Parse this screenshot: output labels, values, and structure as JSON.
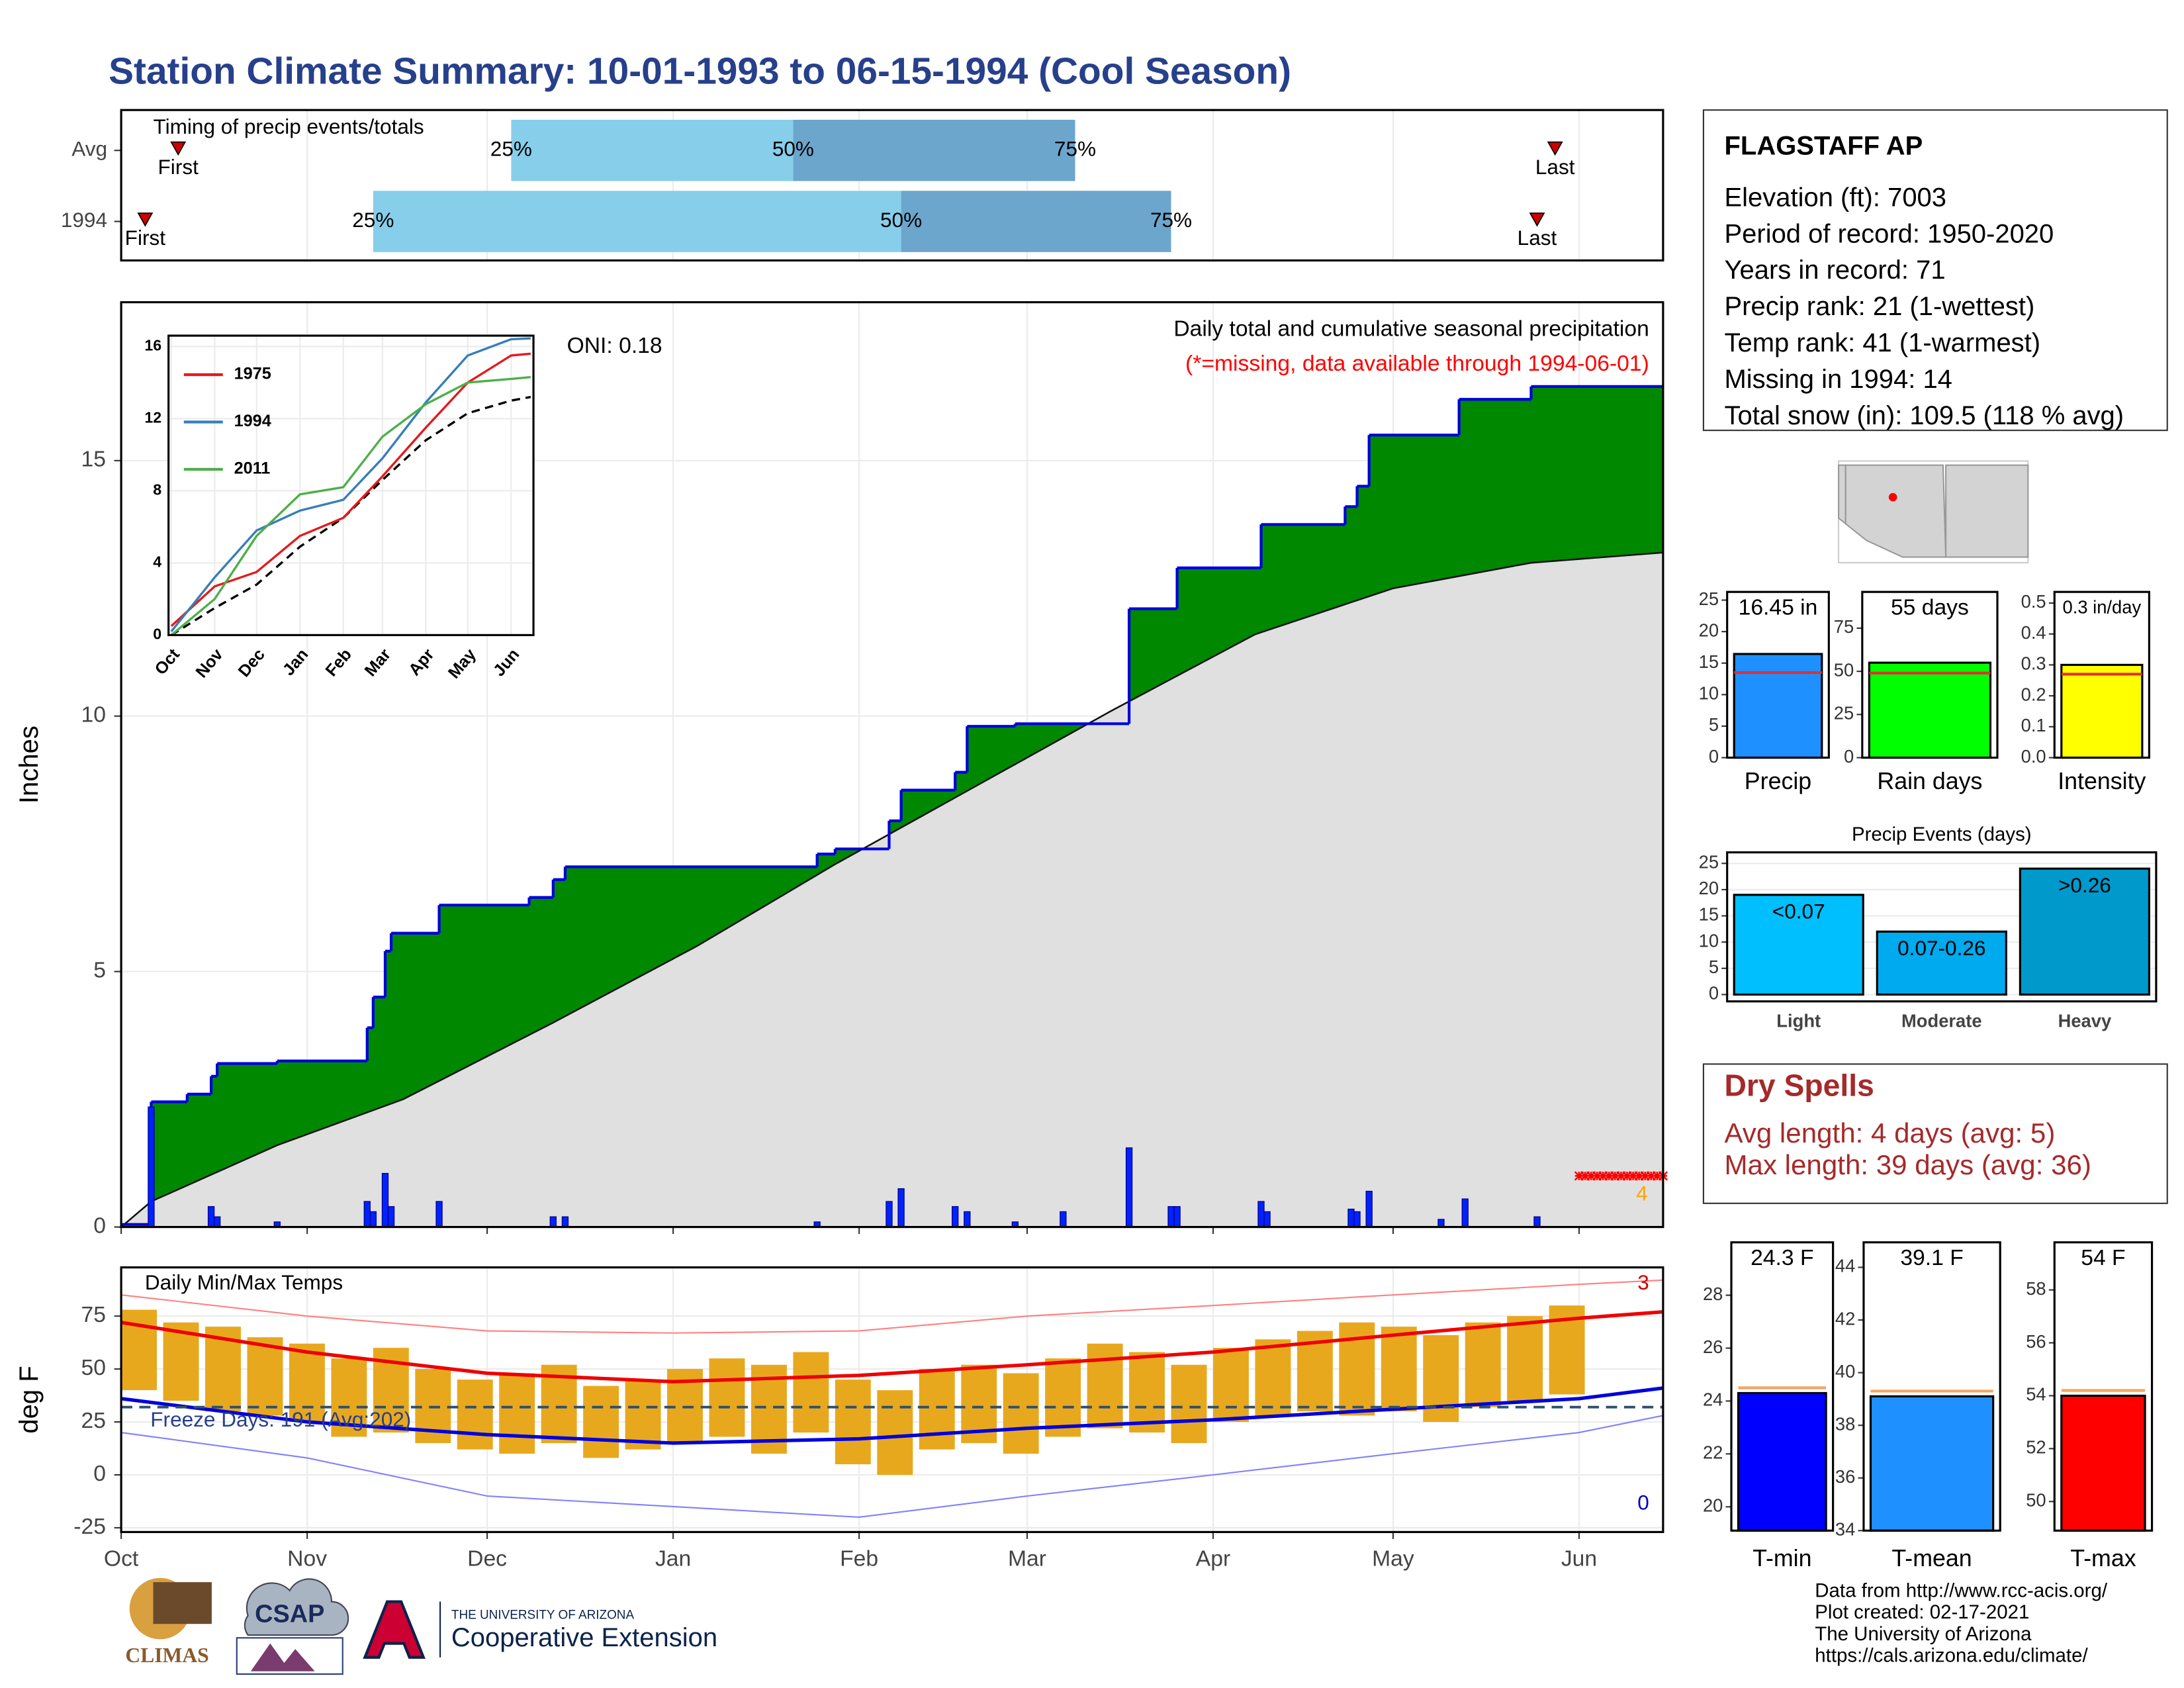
{
  "title": "Station Climate Summary: 10-01-1993 to 06-15-1994 (Cool Season)",
  "station": {
    "name": "FLAGSTAFF AP",
    "lines": [
      "Elevation (ft): 7003",
      "Period of record: 1950-2020",
      "Years in record: 71",
      "Precip rank: 21 (1-wettest)",
      "Temp rank: 41 (1-warmest)",
      "Missing in 1994: 14",
      "Total snow (in): 109.5 (118 % avg)"
    ]
  },
  "dry_spells": {
    "title": "Dry Spells",
    "lines": [
      "Avg length: 4 days (avg: 5)",
      "Max length: 39 days (avg: 36)"
    ]
  },
  "logos": [
    "CLIMAS",
    "CSAP",
    "THE UNIVERSITY OF ARIZONA",
    "Cooperative Extension"
  ],
  "credits": [
    "Data from http://www.rcc-acis.org/",
    "Plot created: 02-17-2021",
    "The University of Arizona",
    "https://cals.arizona.edu/climate/"
  ],
  "chart_data": [
    {
      "type": "timing",
      "title": "Timing of precip events/totals",
      "xlim": [
        0,
        257
      ],
      "markers": [
        "First",
        "25%",
        "50%",
        "75%",
        "Last"
      ],
      "colors": [
        "#87ceeb",
        "#6ca6cd"
      ],
      "marker_color": "#cc0000",
      "rows": [
        {
          "name": "Avg",
          "values": [
            9.5,
            65,
            112,
            159,
            239
          ]
        },
        {
          "name": "1994",
          "values": [
            4,
            42,
            130,
            175,
            236
          ]
        }
      ]
    },
    {
      "type": "area",
      "title": "Daily total and cumulative seasonal precipitation",
      "subtitle": "(*=missing, data available through 1994-06-01)",
      "oni": "ONI: 0.18",
      "ylabel": "Inches",
      "xlim": [
        0,
        257
      ],
      "ylim": [
        0,
        18.1
      ],
      "xticks": [
        0,
        31,
        61,
        92,
        123,
        151,
        182,
        212,
        243
      ],
      "yticks": [
        0,
        5,
        10,
        15
      ],
      "grid": true,
      "colors": {
        "observed": "#008800",
        "line": "#0000dd",
        "average": "#e0e0e0",
        "daily": "#0022ff",
        "missing": "#ff0000"
      },
      "observed": {
        "x": [
          0,
          5,
          11,
          15,
          16,
          26,
          41,
          42,
          44,
          45,
          53,
          68,
          72,
          74,
          116,
          119,
          128,
          130,
          139,
          141,
          149,
          168,
          176,
          190,
          204,
          206,
          208,
          223,
          235
        ],
        "values": [
          0.05,
          2.45,
          2.6,
          2.95,
          3.2,
          3.25,
          3.9,
          4.5,
          5.4,
          5.75,
          6.3,
          6.45,
          6.8,
          7.05,
          7.3,
          7.4,
          7.95,
          8.55,
          8.9,
          9.8,
          9.85,
          12.1,
          12.9,
          13.75,
          14.1,
          14.5,
          15.5,
          16.2,
          16.45
        ]
      },
      "average": {
        "x": [
          0,
          5,
          26,
          47,
          72,
          96,
          119,
          142,
          165,
          189,
          212,
          235,
          257
        ],
        "values": [
          0,
          0.5,
          1.6,
          2.5,
          4.0,
          5.5,
          7.1,
          8.6,
          10.1,
          11.6,
          12.5,
          13.0,
          13.2
        ]
      },
      "daily": {
        "x": [
          5,
          15,
          16,
          26,
          41,
          42,
          44,
          45,
          53,
          72,
          74,
          116,
          128,
          130,
          139,
          141,
          149,
          157,
          168,
          175,
          176,
          190,
          191,
          205,
          206,
          208,
          220,
          224,
          236
        ],
        "values": [
          2.35,
          0.4,
          0.2,
          0.1,
          0.5,
          0.3,
          1.05,
          0.4,
          0.5,
          0.2,
          0.2,
          0.1,
          0.5,
          0.75,
          0.4,
          0.3,
          0.1,
          0.3,
          1.55,
          0.4,
          0.4,
          0.5,
          0.3,
          0.35,
          0.3,
          0.7,
          0.15,
          0.55,
          0.2
        ]
      },
      "missing_days": [
        243,
        244,
        245,
        246,
        247,
        248,
        249,
        250,
        251,
        252,
        253,
        254,
        255,
        256,
        257
      ],
      "missing_level": 1.0,
      "missing_note": 4
    },
    {
      "type": "line",
      "xlim": [
        -2,
        259
      ],
      "ylim": [
        0,
        16.6
      ],
      "yticks": [
        0,
        4,
        8,
        12,
        16
      ],
      "xticks": [
        {
          "value": 0,
          "label": "Oct"
        },
        {
          "value": 31,
          "label": "Nov"
        },
        {
          "value": 61,
          "label": "Dec"
        },
        {
          "value": 92,
          "label": "Jan"
        },
        {
          "value": 123,
          "label": "Feb"
        },
        {
          "value": 151,
          "label": "Mar"
        },
        {
          "value": 182,
          "label": "Apr"
        },
        {
          "value": 212,
          "label": "May"
        },
        {
          "value": 243,
          "label": "Jun"
        }
      ],
      "x": [
        0,
        31,
        61,
        92,
        123,
        151,
        182,
        212,
        243,
        257
      ],
      "series": [
        {
          "name": "1975",
          "color": "#e41a1c",
          "values": [
            0.5,
            2.7,
            3.5,
            5.5,
            6.5,
            8.8,
            11.5,
            14.0,
            15.5,
            15.6
          ]
        },
        {
          "name": "1994",
          "color": "#377eb8",
          "values": [
            0.2,
            3.2,
            5.8,
            6.9,
            7.5,
            9.8,
            12.9,
            15.5,
            16.4,
            16.45
          ]
        },
        {
          "name": "2011",
          "color": "#4daf4a",
          "values": [
            0,
            2.0,
            5.5,
            7.8,
            8.2,
            11.0,
            12.8,
            14.0,
            14.2,
            14.3
          ]
        }
      ],
      "average": [
        0,
        1.5,
        2.8,
        4.9,
        6.5,
        8.6,
        10.8,
        12.3,
        13.0,
        13.2
      ]
    },
    {
      "type": "floatingbar",
      "title": "Daily Min/Max Temps",
      "ylabel": "deg F",
      "xlim": [
        0,
        257
      ],
      "ylim": [
        -27,
        98
      ],
      "yticks": [
        -25,
        0,
        25,
        50,
        75
      ],
      "grid": true,
      "xticks": [
        {
          "value": 0,
          "label": "Oct"
        },
        {
          "value": 31,
          "label": "Nov"
        },
        {
          "value": 61,
          "label": "Dec"
        },
        {
          "value": 92,
          "label": "Jan"
        },
        {
          "value": 123,
          "label": "Feb"
        },
        {
          "value": 151,
          "label": "Mar"
        },
        {
          "value": 182,
          "label": "Apr"
        },
        {
          "value": 212,
          "label": "May"
        },
        {
          "value": 243,
          "label": "Jun"
        }
      ],
      "x": [
        0,
        7,
        14,
        21,
        28,
        35,
        42,
        49,
        56,
        63,
        70,
        77,
        84,
        91,
        98,
        105,
        112,
        119,
        126,
        133,
        140,
        147,
        154,
        161,
        168,
        175,
        182,
        189,
        196,
        203,
        210,
        217,
        224,
        231,
        238
      ],
      "max": [
        78,
        72,
        70,
        65,
        62,
        55,
        60,
        50,
        45,
        48,
        52,
        42,
        45,
        50,
        55,
        52,
        58,
        45,
        40,
        50,
        52,
        48,
        55,
        62,
        58,
        52,
        60,
        64,
        68,
        72,
        70,
        66,
        72,
        75,
        80
      ],
      "min": [
        40,
        35,
        30,
        28,
        25,
        18,
        20,
        15,
        12,
        10,
        15,
        8,
        12,
        15,
        18,
        10,
        20,
        5,
        0,
        12,
        15,
        10,
        18,
        22,
        20,
        15,
        25,
        28,
        30,
        28,
        30,
        25,
        32,
        35,
        38
      ],
      "bar_color": "#e8a81e",
      "normal_x": [
        0,
        31,
        61,
        92,
        123,
        151,
        182,
        212,
        243,
        257
      ],
      "normal_max": [
        72,
        58,
        48,
        44,
        47,
        52,
        58,
        66,
        74,
        77
      ],
      "normal_min": [
        36,
        25,
        19,
        15,
        17,
        22,
        26,
        31,
        36,
        41
      ],
      "record_max": [
        85,
        75,
        68,
        67,
        68,
        75,
        80,
        85,
        90,
        92
      ],
      "record_min": [
        20,
        8,
        -10,
        -15,
        -20,
        -10,
        0,
        10,
        20,
        28
      ],
      "freeze": {
        "value": 32,
        "label": "Freeze Days: 191 (Avg:202)"
      },
      "record_high_count": 3,
      "record_low_count": 0
    },
    {
      "type": "bar",
      "categories": [
        "Precip"
      ],
      "values": [
        16.45
      ],
      "value_labels": [
        "16.45 in"
      ],
      "average": 13.5,
      "average_color": "#e03030",
      "color": "#1e90ff",
      "ylim": [
        0,
        26.3
      ],
      "yticks": [
        0,
        5,
        10,
        15,
        20,
        25
      ]
    },
    {
      "type": "bar",
      "categories": [
        "Rain days"
      ],
      "values": [
        55
      ],
      "value_labels": [
        "55 days"
      ],
      "average": 49,
      "average_color": "#e03030",
      "color": "#00ff00",
      "ylim": [
        0,
        96
      ],
      "yticks": [
        0,
        25,
        50,
        75
      ]
    },
    {
      "type": "bar",
      "categories": [
        "Intensity"
      ],
      "values": [
        0.3
      ],
      "value_labels": [
        "0.3 in/day"
      ],
      "average": 0.27,
      "average_color": "#e03030",
      "color": "#ffff00",
      "ylim": [
        0,
        0.536
      ],
      "yticks": [
        {
          "value": 0,
          "label": "0.0"
        },
        0.1,
        0.2,
        0.3,
        0.4,
        0.5
      ]
    },
    {
      "type": "bar",
      "title": "Precip Events (days)",
      "categories": [
        "Light",
        "Moderate",
        "Heavy"
      ],
      "values": [
        19,
        12,
        24
      ],
      "bin_labels": [
        "<0.07",
        "0.07-0.26",
        ">0.26"
      ],
      "colors": [
        "#00bfff",
        "#00aaee",
        "#0099cc"
      ],
      "ylim": [
        -1.3,
        27.1
      ],
      "yticks": [
        0,
        5,
        10,
        15,
        20,
        25
      ],
      "grid": true
    },
    {
      "type": "bar",
      "categories": [
        "T-min"
      ],
      "values": [
        24.3
      ],
      "value_labels": [
        "24.3 F"
      ],
      "average": 24.5,
      "average_color": "#f4a460",
      "color": "#0000ff",
      "ylim": [
        19.1,
        30
      ],
      "yticks": [
        20,
        22,
        24,
        26,
        28
      ]
    },
    {
      "type": "bar",
      "categories": [
        "T-mean"
      ],
      "values": [
        39.1
      ],
      "value_labels": [
        "39.1 F"
      ],
      "average": 39.3,
      "average_color": "#f4a460",
      "color": "#1e90ff",
      "ylim": [
        34,
        44.95
      ],
      "yticks": [
        34,
        36,
        38,
        40,
        42,
        44
      ]
    },
    {
      "type": "bar",
      "categories": [
        "T-max"
      ],
      "values": [
        54
      ],
      "value_labels": [
        "54 F"
      ],
      "average": 54.2,
      "average_color": "#f4a460",
      "color": "#ff0000",
      "ylim": [
        48.9,
        59.8
      ],
      "yticks": [
        50,
        52,
        54,
        56,
        58
      ]
    }
  ]
}
